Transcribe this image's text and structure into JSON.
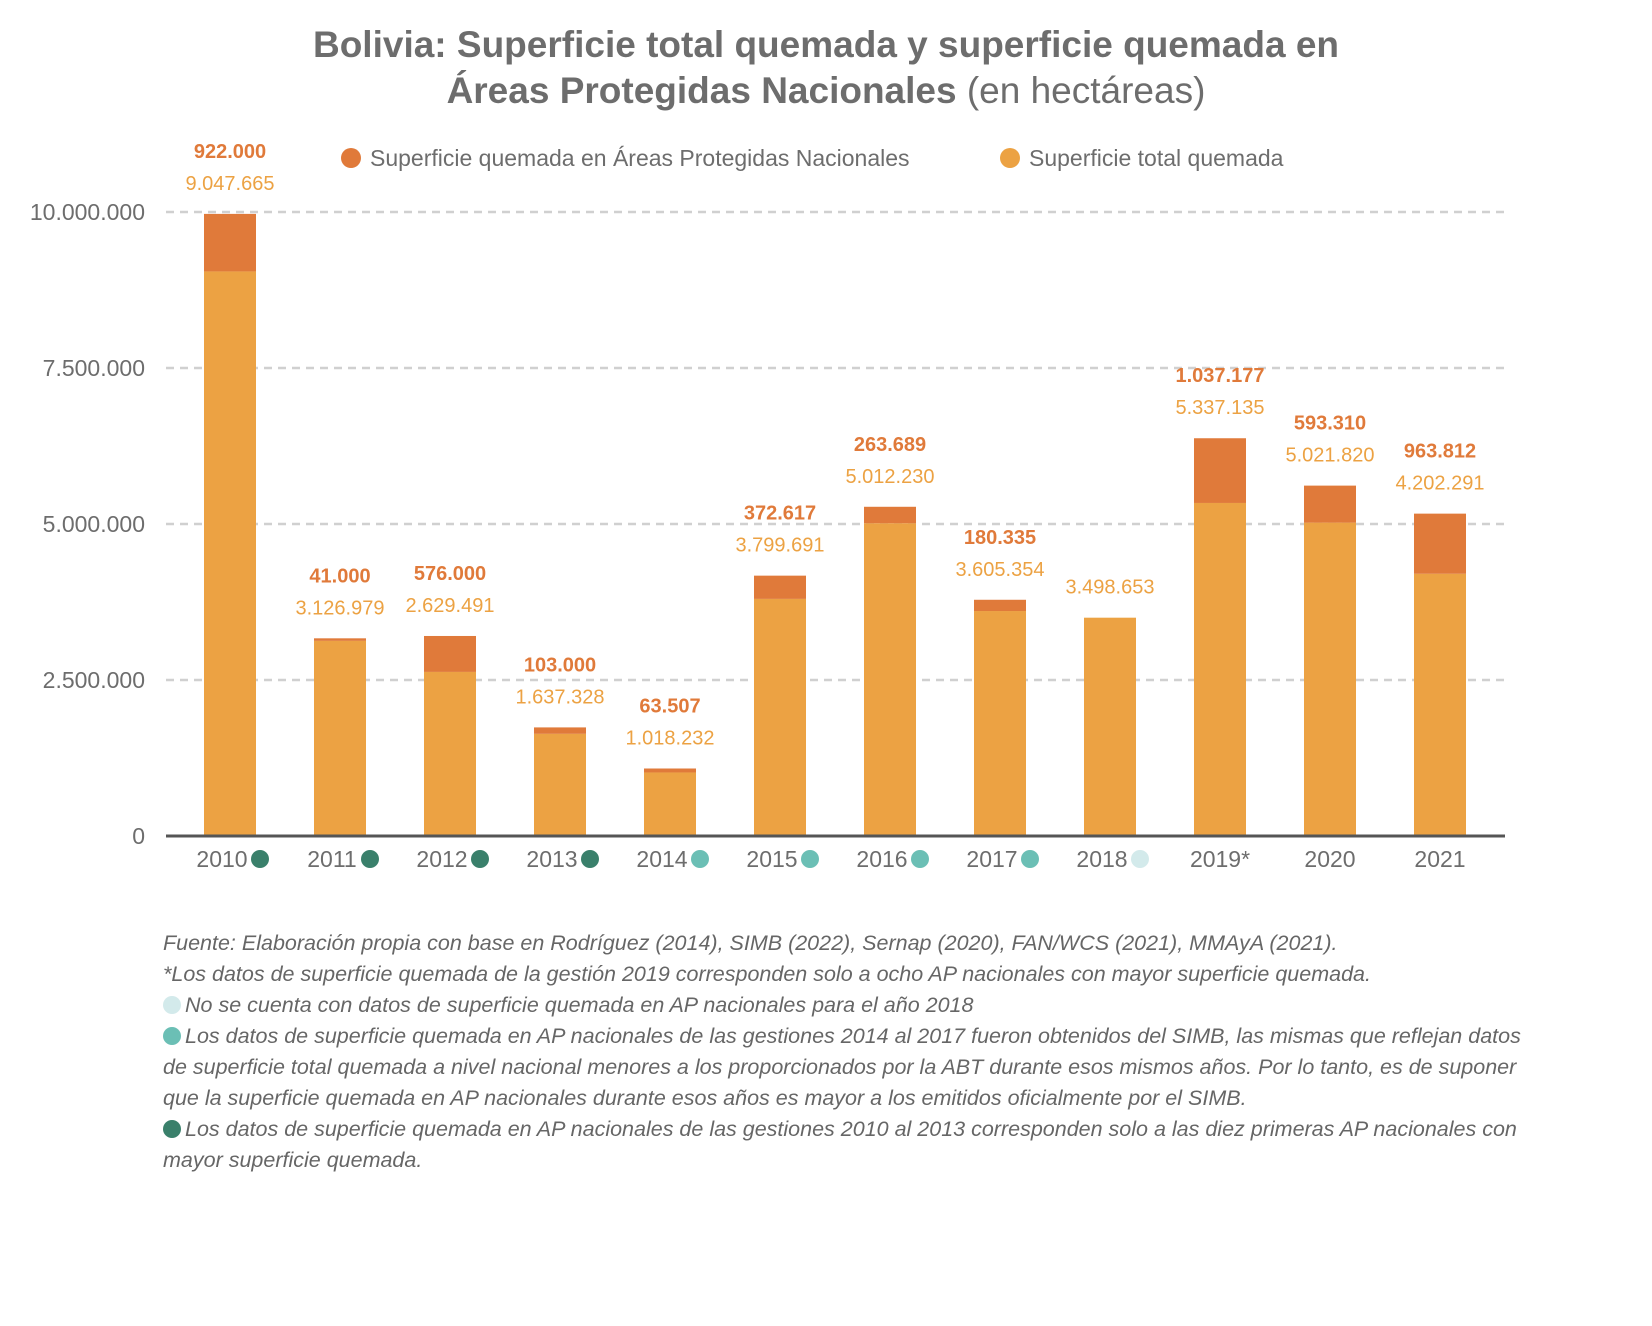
{
  "chart_data": {
    "type": "bar",
    "stacked": true,
    "title": "Bolivia: Superficie total quemada y superficie quemada en Áreas Protegidas Nacionales",
    "title_line1": "Bolivia: Superficie total quemada y superficie quemada en",
    "title_line2": "Áreas Protegidas Nacionales",
    "subtitle": "(en hectáreas)",
    "xlabel": "",
    "ylabel": "",
    "ylim": [
      0,
      10000000
    ],
    "yticks": [
      0,
      2500000,
      5000000,
      7500000,
      10000000
    ],
    "ytick_labels": [
      "0",
      "2.500.000",
      "5.000.000",
      "7.500.000",
      "10.000.000"
    ],
    "grid": true,
    "legend_position": "top",
    "categories": [
      "2010",
      "2011",
      "2012",
      "2013",
      "2014",
      "2015",
      "2016",
      "2017",
      "2018",
      "2019*",
      "2020",
      "2021"
    ],
    "category_markers": [
      "#3a806b",
      "#3a806b",
      "#3a806b",
      "#3a806b",
      "#6bbfb5",
      "#6bbfb5",
      "#6bbfb5",
      "#6bbfb5",
      "#d3eaeb",
      null,
      null,
      null
    ],
    "series": [
      {
        "name": "Superficie total quemada",
        "color": "#eca243",
        "values": [
          9047665,
          3126979,
          2629491,
          1637328,
          1018232,
          3799691,
          5012230,
          3605354,
          3498653,
          5337135,
          5021820,
          4202291
        ],
        "labels": [
          "9.047.665",
          "3.126.979",
          "2.629.491",
          "1.637.328",
          "1.018.232",
          "3.799.691",
          "5.012.230",
          "3.605.354",
          "3.498.653",
          "5.337.135",
          "5.021.820",
          "4.202.291"
        ]
      },
      {
        "name": "Superficie quemada en Áreas Protegidas Nacionales",
        "color": "#e07a3a",
        "values": [
          922000,
          41000,
          576000,
          103000,
          63507,
          372617,
          263689,
          180335,
          null,
          1037177,
          593310,
          963812
        ],
        "labels": [
          "922.000",
          "41.000",
          "576.000",
          "103.000",
          "63.507",
          "372.617",
          "263.689",
          "180.335",
          "",
          "1.037.177",
          "593.310",
          "963.812"
        ]
      }
    ]
  },
  "notes": {
    "source": "Fuente: Elaboración propia con base en Rodríguez (2014), SIMB (2022), Sernap (2020), FAN/WCS (2021), MMAyA (2021).",
    "note_2019": "*Los datos de superficie quemada de la gestión 2019 corresponden solo a ocho AP nacionales con mayor superficie quemada.",
    "note_2018": "No se cuenta con datos de superficie quemada en AP nacionales para el año 2018",
    "note_2014_2017": "Los datos de superficie quemada en AP nacionales de las gestiones 2014 al 2017 fueron obtenidos del SIMB, las mismas que reflejan datos de superficie total quemada a nivel nacional menores a los proporcionados por la ABT durante esos mismos años. Por lo tanto, es de suponer que la superficie quemada en AP nacionales durante esos años es mayor a los emitidos oficialmente por el SIMB.",
    "note_2010_2013": "Los datos de superficie quemada en AP nacionales de las gestiones 2010 al 2013 corresponden solo a las diez primeras AP nacionales con mayor superficie quemada.",
    "colors": {
      "light": "#d3eaeb",
      "mid": "#6bbfb5",
      "dark": "#3a806b"
    }
  }
}
